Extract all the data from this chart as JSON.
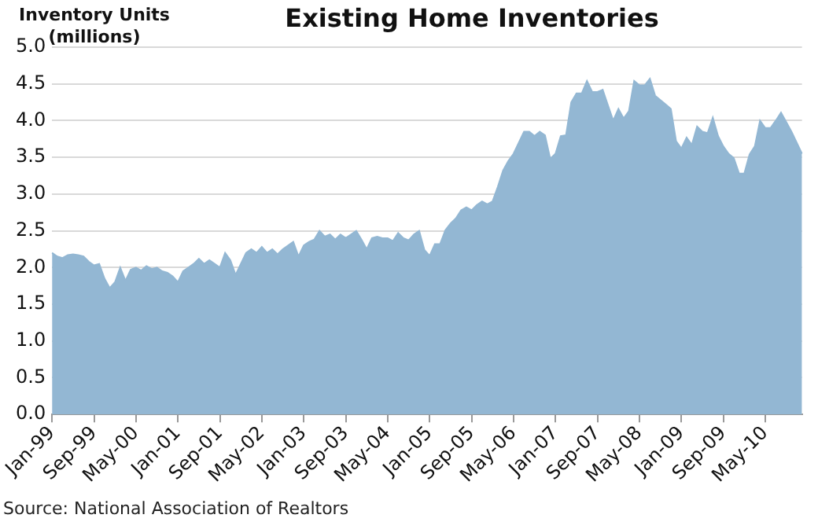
{
  "chart_data": {
    "type": "area",
    "title": "Existing Home Inventories",
    "ylabel": "Inventory  Units (millions)",
    "annotations": [
      "Source: National Association of Realtors"
    ],
    "categories": [
      "Jan-99",
      null,
      null,
      null,
      null,
      null,
      null,
      null,
      "Sep-99",
      null,
      null,
      null,
      null,
      null,
      null,
      null,
      "May-00",
      null,
      null,
      null,
      null,
      null,
      null,
      null,
      "Jan-01",
      null,
      null,
      null,
      null,
      null,
      null,
      null,
      "Sep-01",
      null,
      null,
      null,
      null,
      null,
      null,
      null,
      "May-02",
      null,
      null,
      null,
      null,
      null,
      null,
      null,
      "Jan-03",
      null,
      null,
      null,
      null,
      null,
      null,
      null,
      "Sep-03",
      null,
      null,
      null,
      null,
      null,
      null,
      null,
      "May-04",
      null,
      null,
      null,
      null,
      null,
      null,
      null,
      "Jan-05",
      null,
      null,
      null,
      null,
      null,
      null,
      null,
      "Sep-05",
      null,
      null,
      null,
      null,
      null,
      null,
      null,
      "May-06",
      null,
      null,
      null,
      null,
      null,
      null,
      null,
      "Jan-07",
      null,
      null,
      null,
      null,
      null,
      null,
      null,
      "Sep-07",
      null,
      null,
      null,
      null,
      null,
      null,
      null,
      "May-08",
      null,
      null,
      null,
      null,
      null,
      null,
      null,
      "Jan-09",
      null,
      null,
      null,
      null,
      null,
      null,
      null,
      "Sep-09",
      null,
      null,
      null,
      null,
      null,
      null,
      null,
      "May-10",
      null,
      null,
      null,
      null,
      null,
      null,
      null
    ],
    "series": [
      {
        "color": "#93b7d3",
        "values": [
          2.2,
          2.15,
          2.13,
          2.17,
          2.18,
          2.17,
          2.15,
          2.08,
          2.03,
          2.05,
          1.85,
          1.72,
          1.8,
          2.0,
          1.82,
          1.97,
          2.0,
          1.96,
          2.02,
          1.98,
          2.0,
          1.95,
          1.93,
          1.88,
          1.8,
          1.95,
          2.0,
          2.05,
          2.12,
          2.05,
          2.1,
          2.05,
          2.0,
          2.2,
          2.1,
          1.9,
          2.05,
          2.2,
          2.25,
          2.2,
          2.28,
          2.2,
          2.25,
          2.18,
          2.25,
          2.3,
          2.35,
          2.15,
          2.3,
          2.35,
          2.38,
          2.5,
          2.42,
          2.45,
          2.38,
          2.45,
          2.4,
          2.45,
          2.5,
          2.38,
          2.25,
          2.4,
          2.42,
          2.4,
          2.4,
          2.36,
          2.47,
          2.4,
          2.37,
          2.45,
          2.5,
          2.24,
          2.16,
          2.32,
          2.32,
          2.51,
          2.6,
          2.67,
          2.78,
          2.82,
          2.78,
          2.85,
          2.9,
          2.86,
          2.9,
          3.1,
          3.32,
          3.45,
          3.55,
          3.7,
          3.85,
          3.85,
          3.79,
          3.85,
          3.8,
          3.48,
          3.55,
          3.79,
          3.8,
          4.25,
          4.37,
          4.37,
          4.54,
          4.39,
          4.39,
          4.42,
          4.21,
          4.0,
          4.16,
          4.03,
          4.13,
          4.54,
          4.48,
          4.48,
          4.57,
          4.34,
          4.28,
          4.22,
          4.16,
          3.72,
          3.62,
          3.77,
          3.67,
          3.92,
          3.85,
          3.83,
          4.04,
          3.79,
          3.65,
          3.55,
          3.49,
          3.28,
          3.28,
          3.54,
          3.65,
          4.0,
          3.9,
          3.9,
          4.0,
          4.11,
          3.98,
          3.85,
          3.7,
          3.55
        ]
      }
    ],
    "ylim": [
      0,
      5
    ],
    "yticks": [
      {
        "value": 0,
        "label": "0.0"
      },
      {
        "value": 0.5,
        "label": "0.5"
      },
      {
        "value": 1,
        "label": "1.0"
      },
      {
        "value": 1.5,
        "label": "1.5"
      },
      {
        "value": 2,
        "label": "2.0"
      },
      {
        "value": 2.5,
        "label": "2.5"
      },
      {
        "value": 3,
        "label": "3.0"
      },
      {
        "value": 3.5,
        "label": "3.5"
      },
      {
        "value": 4,
        "label": "4.0"
      },
      {
        "value": 4.5,
        "label": "4.5"
      },
      {
        "value": 5,
        "label": "5.0"
      }
    ],
    "grid": "y",
    "legend": false
  }
}
